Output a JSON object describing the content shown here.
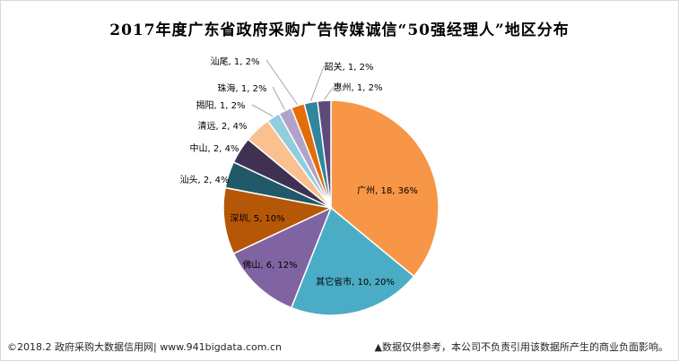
{
  "chart_data": {
    "type": "pie",
    "title": "2017年度广东省政府采购广告传媒诚信“50强经理人”地区分布",
    "slices": [
      {
        "name": "广州",
        "value": 18,
        "percent": "36%",
        "color": "#f79646",
        "label": "广州, 18, 36%",
        "label_side": "inside"
      },
      {
        "name": "其它省市",
        "value": 10,
        "percent": "20%",
        "color": "#4bacc6",
        "label": "其它省市, 10, 20%",
        "label_side": "inside"
      },
      {
        "name": "佛山",
        "value": 6,
        "percent": "12%",
        "color": "#8064a2",
        "label": "佛山, 6, 12%",
        "label_side": "inside"
      },
      {
        "name": "深圳",
        "value": 5,
        "percent": "10%",
        "color": "#b65708",
        "label": "深圳, 5, 10%",
        "label_side": "inside"
      },
      {
        "name": "汕头",
        "value": 2,
        "percent": "4%",
        "color": "#215968",
        "label": "汕头, 2, 4%",
        "label_side": "outside"
      },
      {
        "name": "中山",
        "value": 2,
        "percent": "4%",
        "color": "#403152",
        "label": "中山, 2, 4%",
        "label_side": "outside"
      },
      {
        "name": "清远",
        "value": 2,
        "percent": "4%",
        "color": "#fac090",
        "label": "清远, 2, 4%",
        "label_side": "outside"
      },
      {
        "name": "揭阳",
        "value": 1,
        "percent": "2%",
        "color": "#93cddd",
        "label": "揭阳, 1, 2%",
        "label_side": "leader"
      },
      {
        "name": "珠海",
        "value": 1,
        "percent": "2%",
        "color": "#b3a2c7",
        "label": "珠海, 1, 2%",
        "label_side": "leader"
      },
      {
        "name": "汕尾",
        "value": 1,
        "percent": "2%",
        "color": "#e46c0a",
        "label": "汕尾, 1, 2%",
        "label_side": "leader"
      },
      {
        "name": "韶关",
        "value": 1,
        "percent": "2%",
        "color": "#31859c",
        "label": "韶关, 1, 2%",
        "label_side": "leader"
      },
      {
        "name": "惠州",
        "value": 1,
        "percent": "2%",
        "color": "#5f497a",
        "label": "惠州, 1, 2%",
        "label_side": "leader"
      }
    ],
    "legend": "none"
  },
  "footer": {
    "left": "©2018.2 政府采购大数据信用网| www.941bigdata.com.cn",
    "right": "▲数据仅供参考，本公司不负责引用该数据所产生的商业负面影响。"
  }
}
